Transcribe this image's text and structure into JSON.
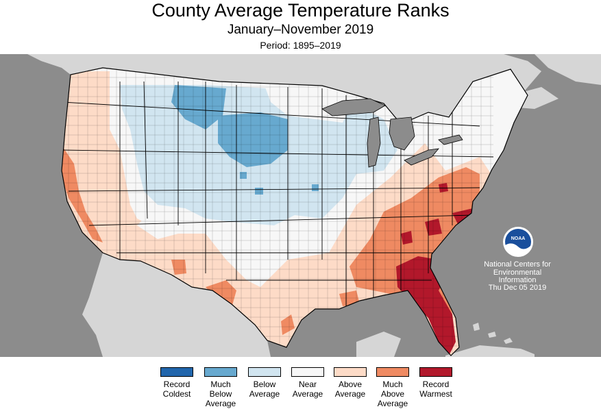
{
  "title": "County Average Temperature Ranks",
  "subtitle": "January–November 2019",
  "period": "Period: 1895–2019",
  "credit": {
    "line1": "National Centers for",
    "line2": "Environmental",
    "line3": "Information",
    "date": "Thu Dec 05 2019"
  },
  "logo": {
    "text": "NOAA",
    "icon": "noaa-logo-icon"
  },
  "colors": {
    "ocean": "#8c8c8c",
    "land_outside": "#d6d6d6",
    "record_coldest": "#2166ac",
    "much_below": "#67a9cf",
    "below": "#d1e5f0",
    "near": "#f7f7f7",
    "above": "#fddbc7",
    "much_above": "#ef8a62",
    "record_warmest": "#b2182b"
  },
  "legend": [
    {
      "label": "Record Coldest",
      "color": "#2166ac"
    },
    {
      "label": "Much Below Average",
      "color": "#67a9cf"
    },
    {
      "label": "Below Average",
      "color": "#d1e5f0"
    },
    {
      "label": "Near Average",
      "color": "#f7f7f7"
    },
    {
      "label": "Above Average",
      "color": "#fddbc7"
    },
    {
      "label": "Much Above Average",
      "color": "#ef8a62"
    },
    {
      "label": "Record Warmest",
      "color": "#b2182b"
    }
  ]
}
